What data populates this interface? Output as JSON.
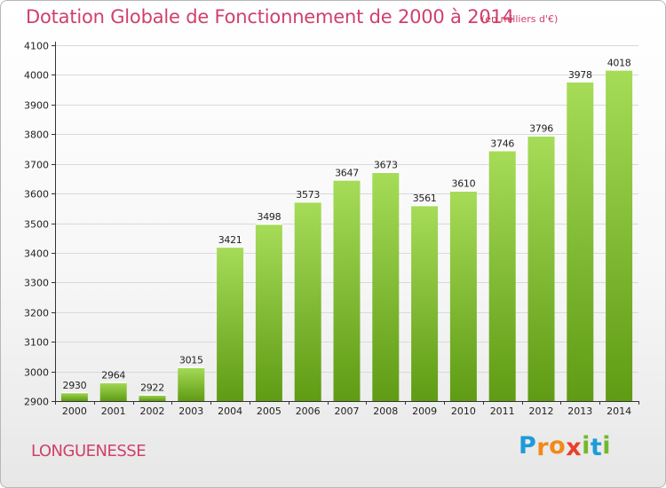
{
  "header": {
    "title": "Dotation Globale de Fonctionnement de 2000 à 2014",
    "unit": "(en milliers d'€)"
  },
  "footer": {
    "commune": "LONGUENESSE",
    "brand_letters": [
      "P",
      "r",
      "o",
      "x",
      "i",
      "t",
      "i"
    ],
    "brand_colors": [
      "#1f9bd7",
      "#f08a1a",
      "#f08a1a",
      "#e8402b",
      "#72b82e",
      "#1f9bd7",
      "#72b82e"
    ]
  },
  "colors": {
    "bar_light": "#a6dc58",
    "bar_dark": "#5f9b14",
    "title": "#d0406b",
    "grid": "#d9d9d9",
    "axis": "#333333"
  },
  "chart_data": {
    "type": "bar",
    "categories": [
      "2000",
      "2001",
      "2002",
      "2003",
      "2004",
      "2005",
      "2006",
      "2007",
      "2008",
      "2009",
      "2010",
      "2011",
      "2012",
      "2013",
      "2014"
    ],
    "values": [
      2930,
      2964,
      2922,
      3015,
      3421,
      3498,
      3573,
      3647,
      3673,
      3561,
      3610,
      3746,
      3796,
      3978,
      4018
    ],
    "ylim": [
      2900,
      4100
    ],
    "yticks": [
      2900,
      3000,
      3100,
      3200,
      3300,
      3400,
      3500,
      3600,
      3700,
      3800,
      3900,
      4000,
      4100
    ],
    "grid": true,
    "data_labels": true
  }
}
